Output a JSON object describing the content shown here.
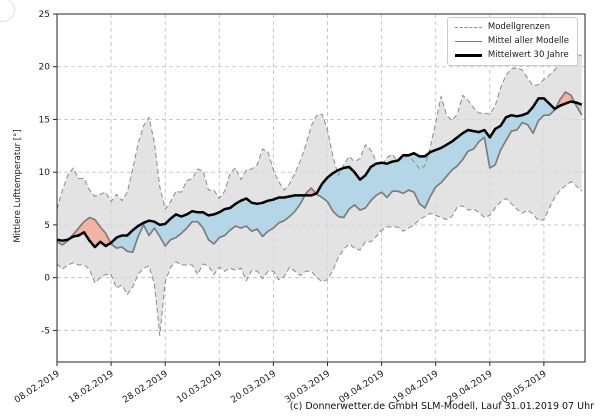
{
  "figure": {
    "caption": "(c) Donnerwetter.de GmbH SLM-Modell, Lauf 31.01.2019 07 Uhr"
  },
  "chart_data": {
    "type": "line",
    "title": "",
    "xlabel": "",
    "ylabel": "Mittlere Lufttemperatur [°]",
    "ylim": [
      -8,
      25
    ],
    "yticks": [
      -5,
      0,
      5,
      10,
      15,
      20,
      25
    ],
    "x_tick_days": [
      0,
      10,
      20,
      30,
      40,
      50,
      60,
      70,
      80,
      90
    ],
    "x_tick_labels": [
      "08.02.2019",
      "18.02.2019",
      "28.02.2019",
      "10.03.2019",
      "20.03.2019",
      "30.03.2019",
      "09.04.2019",
      "19.04.2019",
      "29.04.2019",
      "09.05.2019"
    ],
    "x_days_total": 97,
    "grid": true,
    "legend_position": "upper right",
    "legend": [
      {
        "label": "Modellgrenzen",
        "style": "dashed",
        "color": "#8a8a8a"
      },
      {
        "label": "Mittel aller Modelle",
        "style": "solid",
        "color": "#7d7d7d"
      },
      {
        "label": "Mittelwert 30 Jahre",
        "style": "solid-thick",
        "color": "#000000"
      }
    ],
    "colors": {
      "range_fill": "#d9d9d9",
      "range_edge": "#8a8a8a",
      "cool_fill": "#b5d6e6",
      "warm_fill": "#f2b3a4",
      "model_mean_line": "#7d7d7d",
      "climate_mean_line": "#000000",
      "grid": "#c3c3c3",
      "spine": "#262626",
      "tick_text": "#1a1a1a"
    },
    "series": [
      {
        "name": "Modellgrenze oben",
        "values": [
          6.5,
          8.3,
          9.7,
          10.4,
          9.4,
          9.4,
          8.3,
          7.7,
          7.9,
          8.1,
          7.2,
          7.9,
          7.3,
          8.1,
          10.3,
          12.7,
          14.4,
          15.2,
          12.8,
          8.6,
          6.5,
          7.2,
          8.2,
          8.1,
          9.2,
          9.4,
          10.3,
          10.1,
          8.3,
          8.3,
          7.5,
          8.2,
          9.9,
          10.4,
          9.3,
          10.2,
          10.3,
          10.7,
          12.2,
          11.9,
          10.2,
          9.1,
          8.3,
          8.9,
          9.9,
          11.1,
          12.6,
          14.4,
          15.4,
          15.5,
          14.0,
          11.5,
          9.7,
          10.7,
          11.5,
          11.0,
          11.3,
          12.6,
          12.1,
          11.0,
          10.6,
          11.4,
          11.7,
          11.0,
          11.4,
          11.5,
          11.0,
          10.3,
          10.6,
          12.4,
          14.7,
          17.2,
          15.4,
          14.9,
          15.5,
          17.3,
          16.8,
          16.1,
          15.6,
          15.6,
          15.5,
          16.3,
          18.0,
          19.2,
          19.8,
          19.9,
          19.7,
          18.9,
          18.2,
          18.3,
          18.8,
          19.2,
          19.7,
          20.2,
          20.6,
          21.0,
          21.3,
          21.0
        ]
      },
      {
        "name": "Modellgrenze unten",
        "values": [
          1.3,
          0.8,
          1.2,
          1.4,
          1.2,
          1.2,
          0.8,
          -0.5,
          0.0,
          0.3,
          0.3,
          -1.0,
          -0.7,
          -1.6,
          -0.9,
          0.3,
          0.9,
          1.1,
          -0.6,
          -5.5,
          -0.4,
          1.0,
          1.5,
          1.2,
          1.2,
          1.2,
          0.3,
          1.3,
          1.1,
          0.3,
          1.0,
          0.6,
          0.9,
          0.7,
          0.9,
          -0.3,
          0.7,
          0.6,
          -0.1,
          0.6,
          0.6,
          -0.2,
          0.1,
          1.0,
          0.6,
          0.2,
          0.6,
          0.6,
          0.0,
          -0.4,
          -0.2,
          0.7,
          1.9,
          2.7,
          3.2,
          2.8,
          2.6,
          3.4,
          3.4,
          3.9,
          4.5,
          4.8,
          4.8,
          4.8,
          4.4,
          4.7,
          5.0,
          5.5,
          5.8,
          6.1,
          5.9,
          5.7,
          5.5,
          5.8,
          6.7,
          6.8,
          6.4,
          6.5,
          6.2,
          5.7,
          5.9,
          6.6,
          7.2,
          7.5,
          7.0,
          6.5,
          6.1,
          6.4,
          6.0,
          5.4,
          5.5,
          6.6,
          7.6,
          8.3,
          8.7,
          9.1,
          8.7,
          8.2
        ]
      },
      {
        "name": "Mittel aller Modelle",
        "values": [
          3.4,
          3.1,
          3.5,
          4.1,
          4.7,
          5.3,
          5.7,
          5.5,
          4.8,
          4.2,
          3.2,
          2.8,
          2.9,
          2.5,
          2.4,
          3.9,
          5.0,
          4.0,
          4.7,
          3.9,
          3.0,
          3.6,
          3.8,
          4.2,
          4.7,
          5.3,
          5.3,
          4.7,
          3.6,
          3.2,
          3.8,
          4.0,
          4.5,
          4.9,
          4.7,
          4.9,
          4.4,
          4.6,
          3.9,
          4.4,
          4.7,
          5.2,
          5.4,
          5.8,
          6.3,
          7.0,
          8.0,
          8.5,
          7.9,
          7.6,
          7.2,
          6.3,
          5.8,
          5.7,
          6.5,
          6.9,
          6.4,
          6.6,
          7.3,
          7.8,
          8.1,
          7.6,
          8.2,
          8.2,
          8.0,
          8.3,
          8.1,
          7.0,
          6.6,
          7.7,
          8.6,
          9.0,
          9.6,
          10.2,
          10.6,
          11.2,
          12.0,
          12.2,
          12.9,
          13.3,
          10.4,
          10.7,
          12.1,
          13.0,
          13.9,
          14.0,
          14.7,
          14.5,
          13.7,
          14.9,
          15.4,
          15.4,
          15.9,
          16.9,
          17.6,
          17.3,
          16.3,
          15.4
        ]
      },
      {
        "name": "Mittelwert 30 Jahre",
        "values": [
          3.6,
          3.5,
          3.6,
          3.9,
          4.0,
          4.3,
          3.5,
          2.9,
          3.4,
          3.0,
          3.3,
          3.8,
          4.0,
          4.0,
          4.5,
          4.9,
          5.2,
          5.4,
          5.3,
          5.0,
          5.1,
          5.6,
          6.0,
          5.8,
          6.0,
          6.3,
          6.2,
          6.2,
          5.9,
          6.0,
          6.2,
          6.5,
          6.6,
          7.0,
          7.3,
          7.5,
          7.1,
          7.0,
          7.1,
          7.3,
          7.4,
          7.6,
          7.6,
          7.7,
          7.8,
          7.8,
          7.8,
          7.8,
          8.0,
          8.9,
          9.5,
          9.9,
          10.2,
          10.4,
          10.5,
          10.0,
          9.3,
          9.7,
          10.5,
          10.8,
          10.9,
          10.8,
          11.0,
          11.1,
          11.6,
          11.6,
          11.8,
          11.5,
          11.5,
          11.9,
          12.1,
          12.3,
          12.6,
          12.9,
          13.3,
          13.7,
          14.0,
          13.9,
          13.8,
          14.0,
          13.3,
          14.1,
          14.4,
          15.2,
          15.4,
          15.3,
          15.4,
          15.6,
          16.2,
          17.0,
          17.0,
          16.5,
          16.0,
          16.3,
          16.5,
          16.7,
          16.6,
          16.4
        ]
      }
    ]
  }
}
